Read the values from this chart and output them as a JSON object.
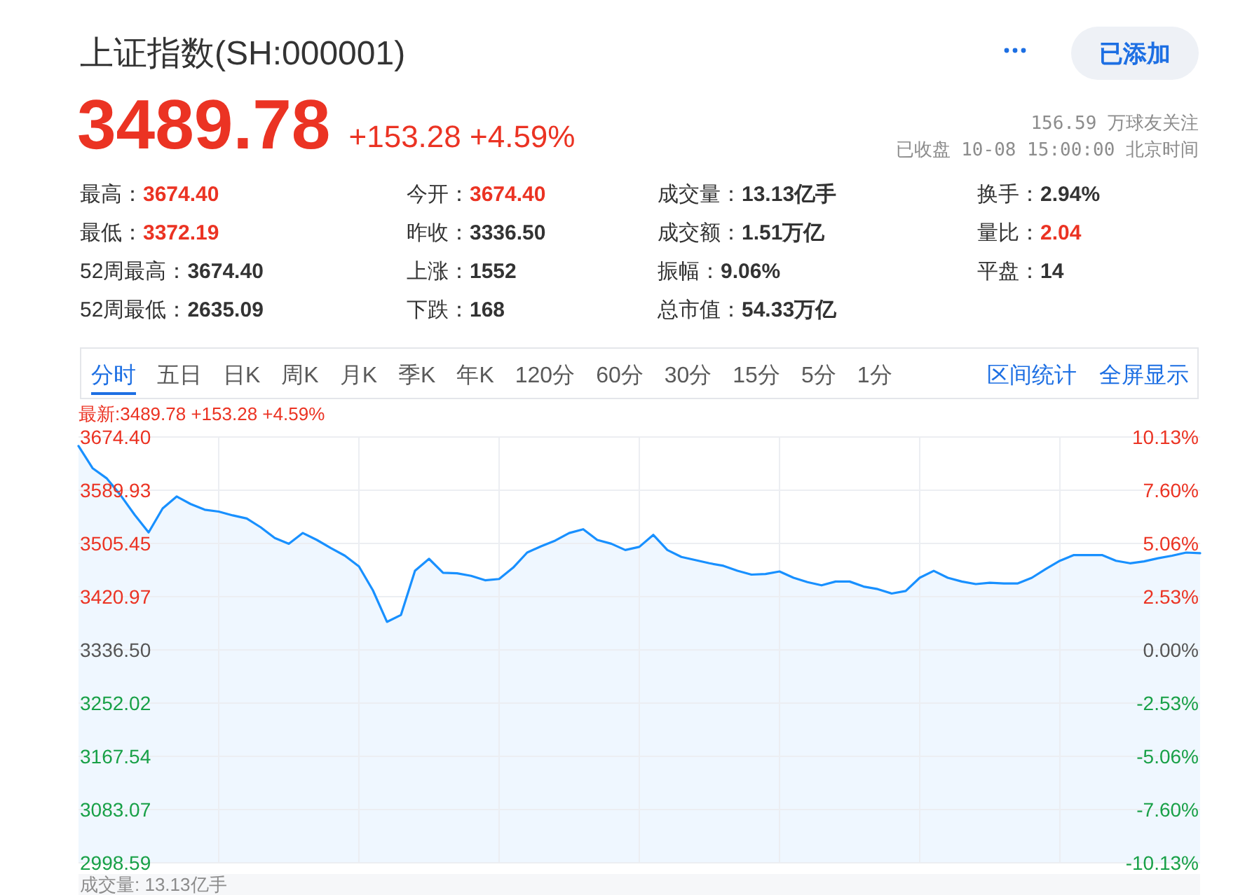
{
  "chart_data": [
    {
      "type": "other",
      "title": "上证指数(SH:000001)",
      "annotations": [
        "3489.78",
        "+153.28 +4.59%",
        "156.59 万球友关注",
        "已收盘 10-08 15:00:00 北京时间",
        "已添加",
        "最高：",
        "3674.40",
        "最低：",
        "3372.19",
        "52周最高：",
        "3674.40",
        "52周最低：",
        "2635.09",
        "今开：",
        "3674.40",
        "昨收：",
        "3336.50",
        "上涨：",
        "1552",
        "下跌：",
        "168",
        "成交量：",
        "13.13亿手",
        "成交额：",
        "1.51万亿",
        "振幅：",
        "9.06%",
        "总市值：",
        "54.33万亿",
        "换手：",
        "2.94%",
        "量比：",
        "2.04",
        "平盘：",
        "14"
      ]
    },
    {
      "type": "area",
      "annotations": [
        "分时",
        "五日",
        "日K",
        "周K",
        "月K",
        "季K",
        "年K",
        "120分",
        "60分",
        "30分",
        "15分",
        "5分",
        "1分",
        "区间统计",
        "全屏显示",
        "最新:3489.78 +153.28 +4.59%",
        "成交量: 13.13亿手"
      ],
      "categories": [
        null,
        null,
        null,
        null,
        null,
        null,
        null,
        null,
        null,
        null,
        null,
        null,
        null,
        null,
        null,
        null,
        null,
        null,
        null,
        null,
        null,
        null,
        null,
        null,
        null,
        null,
        null,
        null,
        null,
        null,
        null,
        null,
        null,
        null,
        null,
        null,
        null,
        null,
        null,
        null,
        null,
        null,
        null,
        null,
        null,
        null,
        null,
        null,
        null,
        null,
        null,
        null,
        null,
        null,
        null,
        null,
        null,
        null,
        null,
        null,
        null,
        null,
        null,
        null,
        null,
        null,
        null,
        null,
        null,
        null,
        null,
        null,
        null,
        null,
        null,
        null,
        null,
        null,
        null,
        null,
        null
      ],
      "series": [
        {
          "color": "#1890ff",
          "values": [
            3660,
            3625,
            3609,
            3582,
            3551,
            3523,
            3561,
            3580,
            3568,
            3559,
            3556,
            3550,
            3545,
            3531,
            3514,
            3505,
            3522,
            3511,
            3498,
            3486,
            3469,
            3431,
            3381,
            3392,
            3462,
            3481,
            3459,
            3458,
            3454,
            3447,
            3449,
            3467,
            3491,
            3501,
            3510,
            3522,
            3528,
            3511,
            3505,
            3495,
            3500,
            3519,
            3495,
            3484,
            3479,
            3474,
            3470,
            3462,
            3456,
            3457,
            3461,
            3451,
            3444,
            3439,
            3445,
            3445,
            3437,
            3433,
            3426,
            3430,
            3451,
            3462,
            3451,
            3445,
            3441,
            3443,
            3442,
            3442,
            3451,
            3465,
            3478,
            3487,
            3487,
            3487,
            3478,
            3474,
            3477,
            3482,
            3486,
            3491,
            3490
          ]
        }
      ],
      "ylim": [
        2998.59,
        3674.4
      ],
      "yticks": [
        {
          "value": 3674.4,
          "label": "3674.40"
        },
        3589.93,
        3505.45,
        3420.97,
        {
          "value": 3336.5,
          "label": "3336.50"
        },
        3252.02,
        3167.54,
        3083.07,
        2998.59
      ],
      "y2lim": [
        -10.13,
        10.13
      ],
      "y2ticks": [
        {
          "value": 10.13,
          "label": "10.13%"
        },
        {
          "value": 7.6,
          "label": "7.60%"
        },
        {
          "value": 5.06,
          "label": "5.06%"
        },
        {
          "value": 2.53,
          "label": "2.53%"
        },
        {
          "value": 0,
          "label": "0.00%"
        },
        {
          "value": -2.53,
          "label": "-2.53%"
        },
        {
          "value": -5.06,
          "label": "-5.06%"
        },
        {
          "value": -7.6,
          "label": "-7.60%"
        },
        {
          "value": -10.13,
          "label": "-10.13%"
        }
      ],
      "grid": true
    }
  ]
}
